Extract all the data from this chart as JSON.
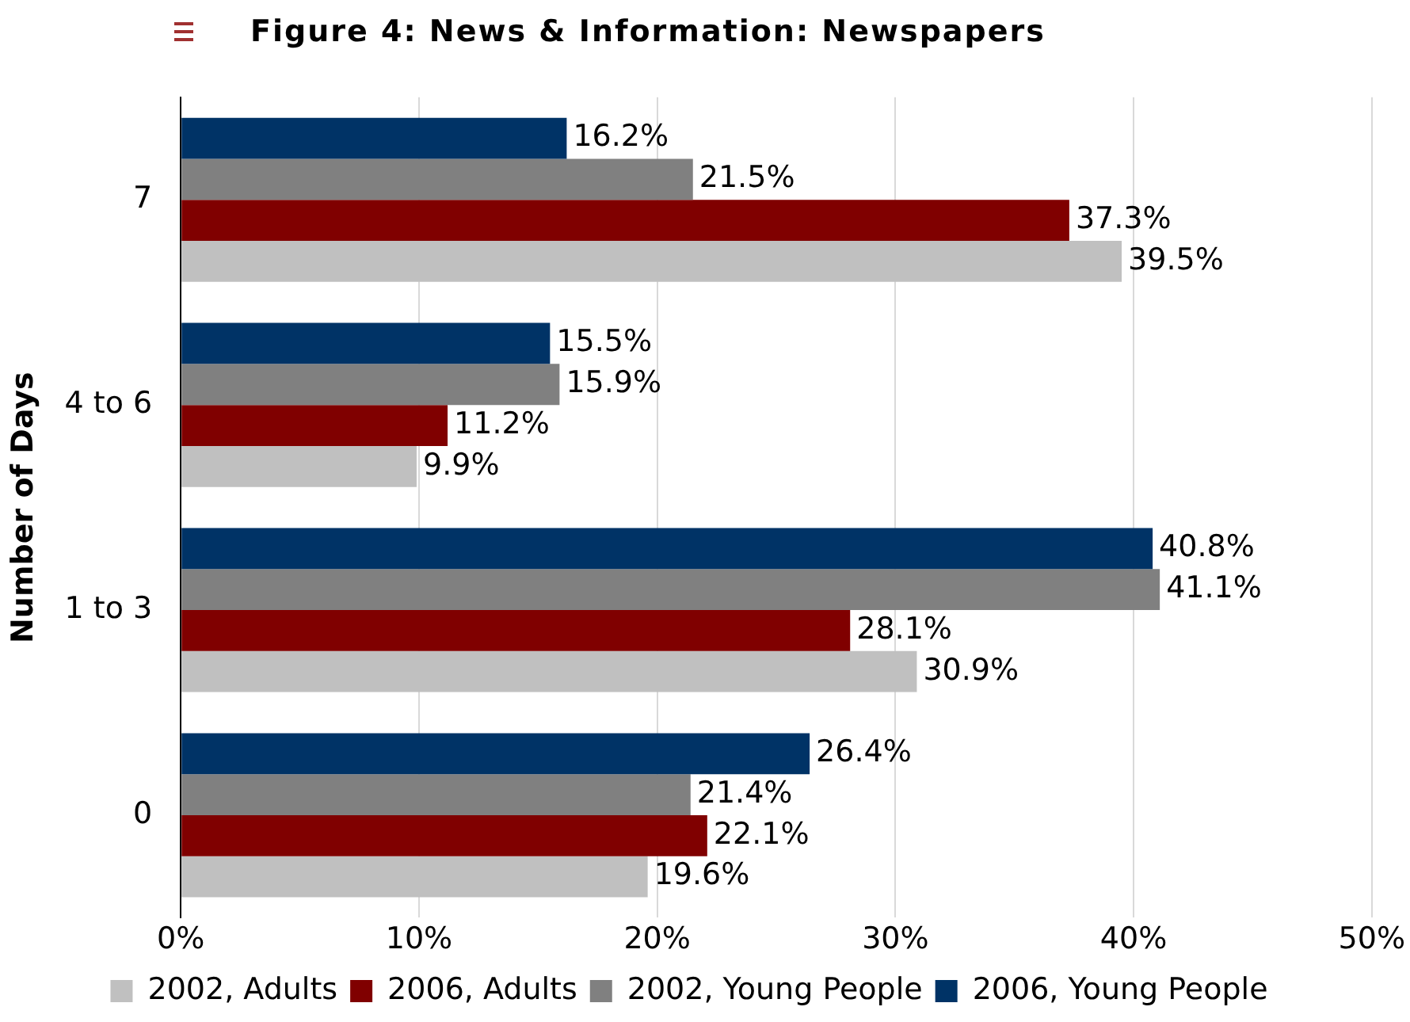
{
  "chart_data": {
    "type": "bar",
    "orientation": "horizontal",
    "title": "Figure 4: News & Information: Newspapers",
    "ylabel": "Number of Days",
    "categories": [
      "7",
      "4 to 6",
      "1 to 3",
      "0"
    ],
    "series": [
      {
        "name": "2002, Adults",
        "color": "#c0c0c0",
        "values": [
          39.5,
          9.9,
          30.9,
          19.6
        ],
        "value_labels": [
          "39.5%",
          "9.9%",
          "30.9%",
          "19.6%"
        ]
      },
      {
        "name": "2006, Adults",
        "color": "#800000",
        "values": [
          37.3,
          11.2,
          28.1,
          22.1
        ],
        "value_labels": [
          "37.3%",
          "11.2%",
          "28.1%",
          "22.1%"
        ]
      },
      {
        "name": "2002, Young People",
        "color": "#808080",
        "values": [
          21.5,
          15.9,
          41.1,
          21.4
        ],
        "value_labels": [
          "21.5%",
          "15.9%",
          "41.1%",
          "21.4%"
        ]
      },
      {
        "name": "2006, Young People",
        "color": "#003366",
        "values": [
          16.2,
          15.5,
          40.8,
          26.4
        ],
        "value_labels": [
          "16.2%",
          "15.5%",
          "40.8%",
          "26.4%"
        ]
      }
    ],
    "xlim": [
      0,
      50
    ],
    "xticks": [
      {
        "value": 0,
        "label": "0%"
      },
      {
        "value": 10,
        "label": "10%"
      },
      {
        "value": 20,
        "label": "20%"
      },
      {
        "value": 30,
        "label": "30%"
      },
      {
        "value": 40,
        "label": "40%"
      },
      {
        "value": 50,
        "label": "50%"
      }
    ],
    "grid": "x",
    "legend": "bottom"
  }
}
